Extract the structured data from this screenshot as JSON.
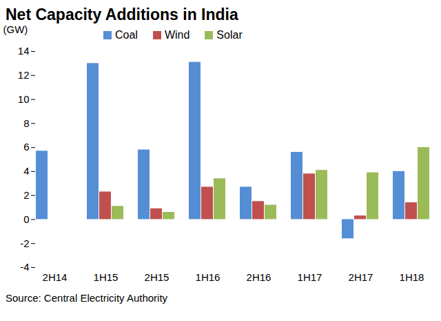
{
  "chart_data": {
    "type": "bar",
    "title": "Net Capacity Additions in India",
    "y_label": "(GW)",
    "caption": "Source: Central Electricity Authority",
    "categories": [
      "2H14",
      "1H15",
      "2H15",
      "1H16",
      "2H16",
      "1H17",
      "2H17",
      "1H18"
    ],
    "series": [
      {
        "name": "Coal",
        "color": "#558ed5",
        "values": [
          5.7,
          13.0,
          5.8,
          13.1,
          2.7,
          5.6,
          -1.6,
          4.0
        ]
      },
      {
        "name": "Wind",
        "color": "#c0504d",
        "values": [
          null,
          2.3,
          0.9,
          2.7,
          1.5,
          3.8,
          0.3,
          1.4
        ]
      },
      {
        "name": "Solar",
        "color": "#9bbb59",
        "values": [
          null,
          1.1,
          0.6,
          3.4,
          1.2,
          4.1,
          3.9,
          6.0
        ]
      }
    ],
    "ylim": [
      -4,
      14
    ],
    "yticks": [
      -4,
      -2,
      0,
      2,
      4,
      6,
      8,
      10,
      12,
      14
    ],
    "grid": false,
    "legend": "top"
  }
}
